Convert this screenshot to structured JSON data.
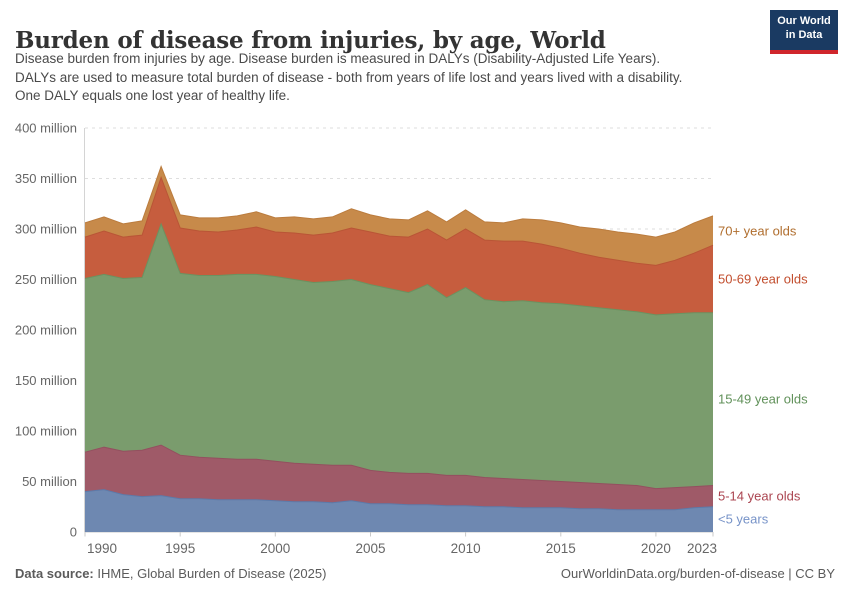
{
  "header": {
    "title": "Burden of disease from injuries, by age, World",
    "subtitle_lines": [
      "Disease burden from injuries by age. Disease burden is measured in DALYs (Disability-Adjusted Life Years).",
      "DALYs are used to measure total burden of disease - both from years of life lost and years lived with a disability.",
      "One DALY equals one lost year of healthy life."
    ],
    "logo": {
      "line1": "Our World",
      "line2": "in Data",
      "bg_color": "#1a3a62",
      "stripe_color": "#d0262c"
    }
  },
  "chart_data": {
    "type": "area",
    "stacked": true,
    "title": "Burden of disease from injuries, by age, World",
    "xlabel": "",
    "ylabel": "DALYs",
    "ylim": [
      0,
      400
    ],
    "grid": "dashed",
    "legend_position": "right",
    "x": [
      1990,
      1991,
      1992,
      1993,
      1994,
      1995,
      1996,
      1997,
      1998,
      1999,
      2000,
      2001,
      2002,
      2003,
      2004,
      2005,
      2006,
      2007,
      2008,
      2009,
      2010,
      2011,
      2012,
      2013,
      2014,
      2015,
      2016,
      2017,
      2018,
      2019,
      2020,
      2021,
      2022,
      2023
    ],
    "x_ticks": [
      1990,
      1995,
      2000,
      2005,
      2010,
      2015,
      2020,
      2023
    ],
    "y_ticks": [
      {
        "value": 0,
        "label": "0"
      },
      {
        "value": 50,
        "label": "50 million"
      },
      {
        "value": 100,
        "label": "100 million"
      },
      {
        "value": 150,
        "label": "150 million"
      },
      {
        "value": 200,
        "label": "200 million"
      },
      {
        "value": 250,
        "label": "250 million"
      },
      {
        "value": 300,
        "label": "300 million"
      },
      {
        "value": 350,
        "label": "350 million"
      },
      {
        "value": 400,
        "label": "400 million"
      }
    ],
    "unit_suffix": " million",
    "series": [
      {
        "name": "<5 years",
        "color": "#6e88b1",
        "edge_color": "#5d7aa9",
        "label_color": "#7793c8",
        "values": [
          40,
          42,
          37,
          35,
          36,
          33,
          33,
          32,
          32,
          32,
          31,
          30,
          30,
          29,
          31,
          28,
          28,
          27,
          27,
          26,
          26,
          25,
          25,
          24,
          24,
          24,
          23,
          23,
          22,
          22,
          22,
          22,
          24,
          25
        ]
      },
      {
        "name": "5-14 year olds",
        "color": "#9f5a68",
        "edge_color": "#93505f",
        "label_color": "#ab4551",
        "values": [
          39,
          42,
          43,
          46,
          50,
          43,
          41,
          41,
          40,
          40,
          39,
          38,
          37,
          37,
          35,
          33,
          31,
          31,
          31,
          30,
          30,
          29,
          28,
          28,
          27,
          26,
          26,
          25,
          25,
          24,
          21,
          22,
          21,
          21
        ]
      },
      {
        "name": "15-49 year olds",
        "color": "#7a9c6d",
        "edge_color": "#6b9260",
        "label_color": "#61915a",
        "values": [
          172,
          171,
          171,
          171,
          219,
          180,
          180,
          181,
          183,
          183,
          183,
          182,
          180,
          182,
          184,
          184,
          182,
          179,
          187,
          176,
          186,
          176,
          175,
          177,
          176,
          176,
          175,
          174,
          173,
          172,
          172,
          172,
          172,
          171
        ]
      },
      {
        "name": "50-69 year olds",
        "color": "#c65d3e",
        "edge_color": "#b95536",
        "label_color": "#c24e2e",
        "values": [
          41,
          43,
          41,
          42,
          46,
          45,
          44,
          43,
          44,
          47,
          44,
          46,
          47,
          48,
          51,
          52,
          52,
          55,
          55,
          57,
          58,
          59,
          60,
          59,
          58,
          55,
          52,
          50,
          49,
          48,
          49,
          53,
          59,
          67
        ]
      },
      {
        "name": "70+ year olds",
        "color": "#c78a4a",
        "edge_color": "#bb7c3e",
        "label_color": "#b06e2e",
        "values": [
          14,
          14,
          13,
          14,
          11,
          13,
          13,
          14,
          14,
          15,
          14,
          16,
          16,
          16,
          19,
          17,
          17,
          17,
          18,
          18,
          19,
          18,
          18,
          22,
          24,
          25,
          26,
          28,
          28,
          29,
          28,
          28,
          30,
          29
        ]
      }
    ]
  },
  "footer": {
    "source_label": "Data source:",
    "source_text": " IHME, Global Burden of Disease (2025)",
    "right_text": "OurWorldinData.org/burden-of-disease | CC BY"
  }
}
